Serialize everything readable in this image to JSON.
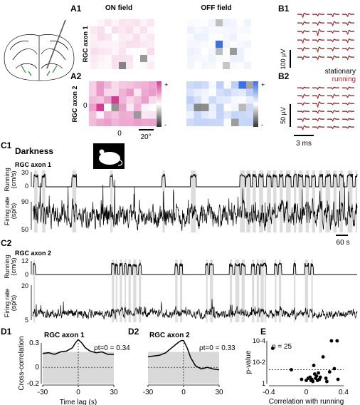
{
  "panels": {
    "A1": "A1",
    "A2": "A2",
    "B1": "B1",
    "B2": "B2",
    "C1": "C1",
    "C2": "C2",
    "D1": "D1",
    "D2": "D2",
    "E": "E"
  },
  "rf": {
    "on_field": "ON field",
    "off_field": "OFF field",
    "axon1_label": "RGC axon 1",
    "axon2_label": "RGC axon 2",
    "zero_x": "0",
    "zero_y": "0",
    "scale_label": "20°",
    "cbar_plus": "+",
    "cbar_minus": "-",
    "on_color": "#d63c96",
    "off_color": "#3d6fe6"
  },
  "waveforms": {
    "legend_stationary": "stationary",
    "legend_running": "running",
    "scale_b1": "100 µV",
    "scale_b2": "50 µV",
    "scale_time": "3 ms",
    "stationary_color": "#000000",
    "running_color": "#c0282a"
  },
  "traces": {
    "condition": "Darkness",
    "c1_title": "RGC axon 1",
    "c2_title": "RGC axon 2",
    "running_label_1": "Running",
    "running_label_2": "(cm/s)",
    "rate_label_1": "Firing rate",
    "rate_label_2": "(sp/s)",
    "c1_run_ticks": [
      "30",
      "0"
    ],
    "c1_rate_ticks": [
      "90",
      "50"
    ],
    "c2_run_ticks": [
      "12",
      "0"
    ],
    "c2_rate_ticks": [
      "20",
      "5"
    ],
    "time_scale": "60 s",
    "c1_running_epochs": [
      [
        2,
        6
      ],
      [
        12,
        16
      ],
      [
        50,
        55
      ],
      [
        98,
        101
      ],
      [
        164,
        167
      ],
      [
        200,
        206
      ],
      [
        262,
        268
      ],
      [
        270,
        275
      ],
      [
        278,
        282
      ],
      [
        286,
        291
      ],
      [
        296,
        301
      ],
      [
        304,
        308
      ],
      [
        312,
        316
      ],
      [
        320,
        326
      ],
      [
        330,
        333
      ],
      [
        336,
        341
      ],
      [
        345,
        349
      ],
      [
        353,
        357
      ],
      [
        362,
        366
      ],
      [
        370,
        376
      ],
      [
        380,
        384
      ],
      [
        388,
        392
      ],
      [
        398,
        404
      ],
      [
        408,
        410
      ]
    ],
    "c2_running_epochs": [
      [
        1,
        3
      ],
      [
        100,
        103
      ],
      [
        105,
        107
      ],
      [
        110,
        113
      ],
      [
        116,
        118
      ],
      [
        121,
        124
      ],
      [
        127,
        131
      ],
      [
        134,
        137
      ],
      [
        180,
        183
      ],
      [
        186,
        189
      ],
      [
        219,
        221
      ],
      [
        224,
        228
      ],
      [
        249,
        252
      ],
      [
        256,
        261
      ],
      [
        264,
        268
      ],
      [
        277,
        280
      ],
      [
        283,
        286
      ],
      [
        288,
        292
      ],
      [
        293,
        295
      ],
      [
        306,
        308
      ],
      [
        311,
        314
      ],
      [
        330,
        332
      ],
      [
        344,
        348
      ],
      [
        352,
        354
      ]
    ]
  },
  "chart_data": [
    {
      "type": "line",
      "title": "RGC axon 1",
      "annotation": "ρt=0 = 0.34",
      "xlabel": "Time lag (s)",
      "ylabel": "Cross-correlation",
      "xlim": [
        -30,
        30
      ],
      "ylim": [
        -0.2,
        0.3
      ],
      "xticks": [
        "-30",
        "0",
        "30"
      ],
      "yticks": [
        "0.3",
        "0",
        "-0.2"
      ],
      "x": [
        -30,
        -25,
        -20,
        -15,
        -10,
        -5,
        -2,
        0,
        3,
        6,
        10,
        15,
        20,
        25,
        30
      ],
      "y": [
        0.17,
        0.18,
        0.16,
        0.19,
        0.2,
        0.24,
        0.31,
        0.34,
        0.3,
        0.24,
        0.2,
        0.18,
        0.19,
        0.16,
        0.16
      ],
      "null_band": [
        -0.2,
        0.19
      ]
    },
    {
      "type": "line",
      "title": "RGC axon 2",
      "annotation": "ρt=0 = 0.33",
      "xlabel": "",
      "ylabel": "",
      "xlim": [
        -30,
        30
      ],
      "ylim": [
        -0.2,
        0.3
      ],
      "xticks": [
        "-30",
        "0",
        "30"
      ],
      "yticks": [],
      "x": [
        -30,
        -25,
        -20,
        -15,
        -10,
        -5,
        -2,
        0,
        3,
        6,
        10,
        15,
        20,
        25,
        30
      ],
      "y": [
        0.13,
        0.14,
        0.15,
        0.18,
        0.24,
        0.3,
        0.33,
        0.33,
        0.24,
        0.12,
        0.02,
        -0.02,
        0.0,
        -0.02,
        -0.03
      ],
      "null_band": [
        -0.2,
        0.19
      ]
    },
    {
      "type": "scatter",
      "annotation": "n = 25",
      "xlabel": "Correlation with running",
      "ylabel": "p-value",
      "xticks": [
        "-0.4",
        "0",
        "0.4"
      ],
      "yticks": [
        "10-4",
        "10-2",
        "1"
      ],
      "xlim": [
        -0.4,
        0.4
      ],
      "ylog_range": [
        -4,
        0
      ],
      "threshold_log": -1.3,
      "points": [
        {
          "x": -0.36,
          "logp": -3.3
        },
        {
          "x": -0.16,
          "logp": -1.3
        },
        {
          "x": -0.05,
          "logp": -0.4
        },
        {
          "x": 0.0,
          "logp": -0.3
        },
        {
          "x": 0.02,
          "logp": -0.5
        },
        {
          "x": 0.04,
          "logp": -0.6
        },
        {
          "x": 0.05,
          "logp": -0.3
        },
        {
          "x": 0.06,
          "logp": -0.4
        },
        {
          "x": 0.07,
          "logp": -0.2
        },
        {
          "x": 0.08,
          "logp": -1.7
        },
        {
          "x": 0.09,
          "logp": -0.9
        },
        {
          "x": 0.1,
          "logp": -0.5
        },
        {
          "x": 0.11,
          "logp": -0.7
        },
        {
          "x": 0.12,
          "logp": -0.3
        },
        {
          "x": 0.13,
          "logp": -1.0
        },
        {
          "x": 0.14,
          "logp": -0.4
        },
        {
          "x": 0.15,
          "logp": -0.6
        },
        {
          "x": 0.18,
          "logp": -2.5
        },
        {
          "x": 0.21,
          "logp": -0.5
        },
        {
          "x": 0.22,
          "logp": -0.2
        },
        {
          "x": 0.25,
          "logp": -1.1
        },
        {
          "x": 0.27,
          "logp": -4.0
        },
        {
          "x": 0.3,
          "logp": -1.4
        },
        {
          "x": 0.33,
          "logp": -4.0
        },
        {
          "x": 0.34,
          "logp": -0.4
        }
      ]
    }
  ]
}
